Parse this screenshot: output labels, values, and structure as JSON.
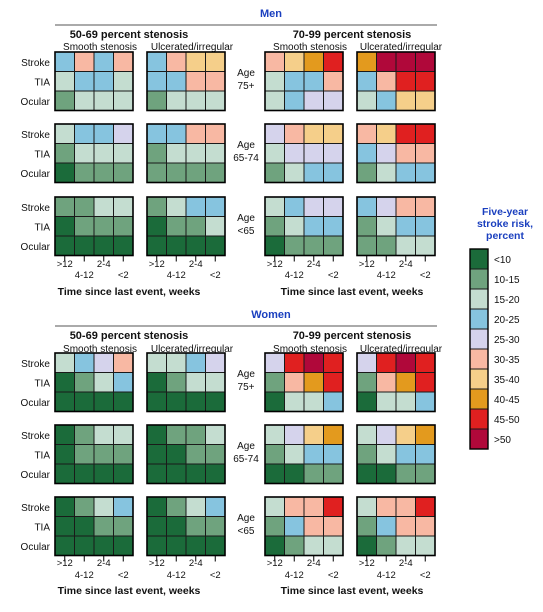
{
  "chart_data": {
    "type": "heatmap",
    "legend": {
      "title_lines": [
        "Five-year",
        "stroke risk,",
        "percent"
      ],
      "bins": [
        {
          "label": "<10",
          "color": "#1b6b3a"
        },
        {
          "label": "10-15",
          "color": "#6fa37e"
        },
        {
          "label": "15-20",
          "color": "#c4ddd0"
        },
        {
          "label": "20-25",
          "color": "#86c4df"
        },
        {
          "label": "25-30",
          "color": "#d5d3ec"
        },
        {
          "label": "30-35",
          "color": "#f8b8a3"
        },
        {
          "label": "35-40",
          "color": "#f5cf8a"
        },
        {
          "label": "40-45",
          "color": "#e39a1e"
        },
        {
          "label": "45-50",
          "color": "#e02020"
        },
        {
          "label": ">50",
          "color": "#b0083a"
        }
      ]
    },
    "row_labels": [
      "Stroke",
      "TIA",
      "Ocular"
    ],
    "time_labels": [
      ">12",
      "4-12",
      "2-4",
      "<2"
    ],
    "x_axis_title": "Time since last event, weeks",
    "stenosis_groups": [
      "50-69 percent stenosis",
      "70-99 percent stenosis"
    ],
    "plaque_types": [
      "Smooth stenosis",
      "Ulcerated/irregular"
    ],
    "age_labels": [
      [
        "Age",
        "75+"
      ],
      [
        "Age",
        "65-74"
      ],
      [
        "Age",
        "<65"
      ]
    ],
    "sections": [
      {
        "title": "Men",
        "panels": [
          [
            [
              [
                3,
                5,
                3,
                5
              ],
              [
                2,
                3,
                3,
                2
              ],
              [
                1,
                2,
                2,
                2
              ]
            ],
            [
              [
                3,
                5,
                6,
                6
              ],
              [
                3,
                3,
                5,
                5
              ],
              [
                1,
                2,
                2,
                2
              ]
            ],
            [
              [
                5,
                6,
                7,
                8
              ],
              [
                2,
                3,
                3,
                5
              ],
              [
                2,
                3,
                4,
                4
              ]
            ],
            [
              [
                7,
                9,
                9,
                9
              ],
              [
                3,
                5,
                8,
                8
              ],
              [
                2,
                3,
                6,
                6
              ]
            ]
          ],
          [
            [
              [
                2,
                3,
                3,
                4
              ],
              [
                1,
                2,
                2,
                2
              ],
              [
                0,
                1,
                1,
                1
              ]
            ],
            [
              [
                3,
                3,
                5,
                5
              ],
              [
                1,
                2,
                2,
                2
              ],
              [
                1,
                1,
                1,
                1
              ]
            ],
            [
              [
                4,
                5,
                6,
                6
              ],
              [
                2,
                4,
                4,
                4
              ],
              [
                1,
                2,
                3,
                3
              ]
            ],
            [
              [
                5,
                6,
                8,
                8
              ],
              [
                3,
                4,
                5,
                5
              ],
              [
                1,
                2,
                3,
                3
              ]
            ]
          ],
          [
            [
              [
                1,
                1,
                2,
                2
              ],
              [
                0,
                1,
                1,
                1
              ],
              [
                0,
                0,
                0,
                0
              ]
            ],
            [
              [
                1,
                2,
                3,
                3
              ],
              [
                0,
                1,
                1,
                2
              ],
              [
                0,
                0,
                0,
                0
              ]
            ],
            [
              [
                2,
                3,
                4,
                4
              ],
              [
                1,
                2,
                3,
                3
              ],
              [
                0,
                1,
                1,
                1
              ]
            ],
            [
              [
                3,
                4,
                5,
                5
              ],
              [
                1,
                2,
                3,
                3
              ],
              [
                1,
                1,
                2,
                2
              ]
            ]
          ]
        ]
      },
      {
        "title": "Women",
        "panels": [
          [
            [
              [
                2,
                3,
                4,
                5
              ],
              [
                0,
                1,
                2,
                3
              ],
              [
                0,
                0,
                0,
                0
              ]
            ],
            [
              [
                2,
                2,
                3,
                4
              ],
              [
                0,
                1,
                2,
                2
              ],
              [
                0,
                0,
                0,
                0
              ]
            ],
            [
              [
                4,
                8,
                9,
                8
              ],
              [
                1,
                5,
                7,
                8
              ],
              [
                0,
                2,
                2,
                3
              ]
            ],
            [
              [
                4,
                8,
                9,
                8
              ],
              [
                1,
                5,
                7,
                8
              ],
              [
                0,
                2,
                2,
                3
              ]
            ]
          ],
          [
            [
              [
                0,
                1,
                2,
                2
              ],
              [
                0,
                1,
                1,
                1
              ],
              [
                0,
                0,
                0,
                0
              ]
            ],
            [
              [
                0,
                1,
                1,
                2
              ],
              [
                0,
                0,
                1,
                1
              ],
              [
                0,
                0,
                0,
                0
              ]
            ],
            [
              [
                2,
                4,
                6,
                7
              ],
              [
                1,
                2,
                3,
                3
              ],
              [
                0,
                0,
                1,
                1
              ]
            ],
            [
              [
                2,
                4,
                6,
                7
              ],
              [
                1,
                2,
                3,
                3
              ],
              [
                0,
                0,
                1,
                1
              ]
            ]
          ],
          [
            [
              [
                0,
                1,
                2,
                3
              ],
              [
                0,
                0,
                1,
                1
              ],
              [
                0,
                0,
                0,
                0
              ]
            ],
            [
              [
                0,
                1,
                2,
                3
              ],
              [
                0,
                0,
                1,
                1
              ],
              [
                0,
                0,
                0,
                0
              ]
            ],
            [
              [
                2,
                5,
                5,
                8
              ],
              [
                1,
                3,
                5,
                5
              ],
              [
                0,
                1,
                2,
                2
              ]
            ],
            [
              [
                2,
                5,
                5,
                8
              ],
              [
                1,
                3,
                5,
                5
              ],
              [
                0,
                1,
                2,
                2
              ]
            ]
          ]
        ]
      }
    ]
  }
}
